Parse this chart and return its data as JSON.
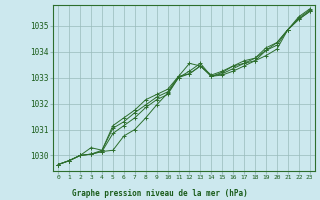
{
  "background_color": "#cce8ee",
  "plot_bg_color": "#cce8ee",
  "grid_color": "#99bbbb",
  "line_color": "#2d6e2d",
  "marker_color": "#2d6e2d",
  "title": "Graphe pression niveau de la mer (hPa)",
  "title_color": "#1a5c1a",
  "tick_color": "#1a5c1a",
  "xlim": [
    -0.5,
    23.5
  ],
  "ylim": [
    1029.4,
    1035.8
  ],
  "yticks": [
    1030,
    1031,
    1032,
    1033,
    1034,
    1035
  ],
  "xticks": [
    0,
    1,
    2,
    3,
    4,
    5,
    6,
    7,
    8,
    9,
    10,
    11,
    12,
    13,
    14,
    15,
    16,
    17,
    18,
    19,
    20,
    21,
    22,
    23
  ],
  "series": [
    [
      1029.65,
      1029.8,
      1030.0,
      1030.05,
      1030.15,
      1030.2,
      1030.75,
      1031.0,
      1031.45,
      1031.95,
      1032.4,
      1033.0,
      1033.25,
      1033.55,
      1033.05,
      1033.1,
      1033.25,
      1033.45,
      1033.65,
      1033.85,
      1034.1,
      1034.85,
      1035.25,
      1035.55
    ],
    [
      1029.65,
      1029.8,
      1030.0,
      1030.05,
      1030.15,
      1030.85,
      1031.15,
      1031.45,
      1031.85,
      1032.15,
      1032.35,
      1033.0,
      1033.15,
      1033.45,
      1033.05,
      1033.15,
      1033.35,
      1033.55,
      1033.65,
      1034.05,
      1034.25,
      1034.85,
      1035.25,
      1035.55
    ],
    [
      1029.65,
      1029.8,
      1030.0,
      1030.05,
      1030.2,
      1031.05,
      1031.3,
      1031.65,
      1031.95,
      1032.25,
      1032.45,
      1033.05,
      1033.15,
      1033.45,
      1033.05,
      1033.2,
      1033.45,
      1033.55,
      1033.75,
      1034.05,
      1034.35,
      1034.85,
      1035.3,
      1035.6
    ],
    [
      1029.65,
      1029.8,
      1030.0,
      1030.3,
      1030.2,
      1031.15,
      1031.45,
      1031.75,
      1032.15,
      1032.35,
      1032.55,
      1033.05,
      1033.55,
      1033.45,
      1033.1,
      1033.25,
      1033.45,
      1033.65,
      1033.75,
      1034.15,
      1034.35,
      1034.85,
      1035.35,
      1035.65
    ]
  ]
}
